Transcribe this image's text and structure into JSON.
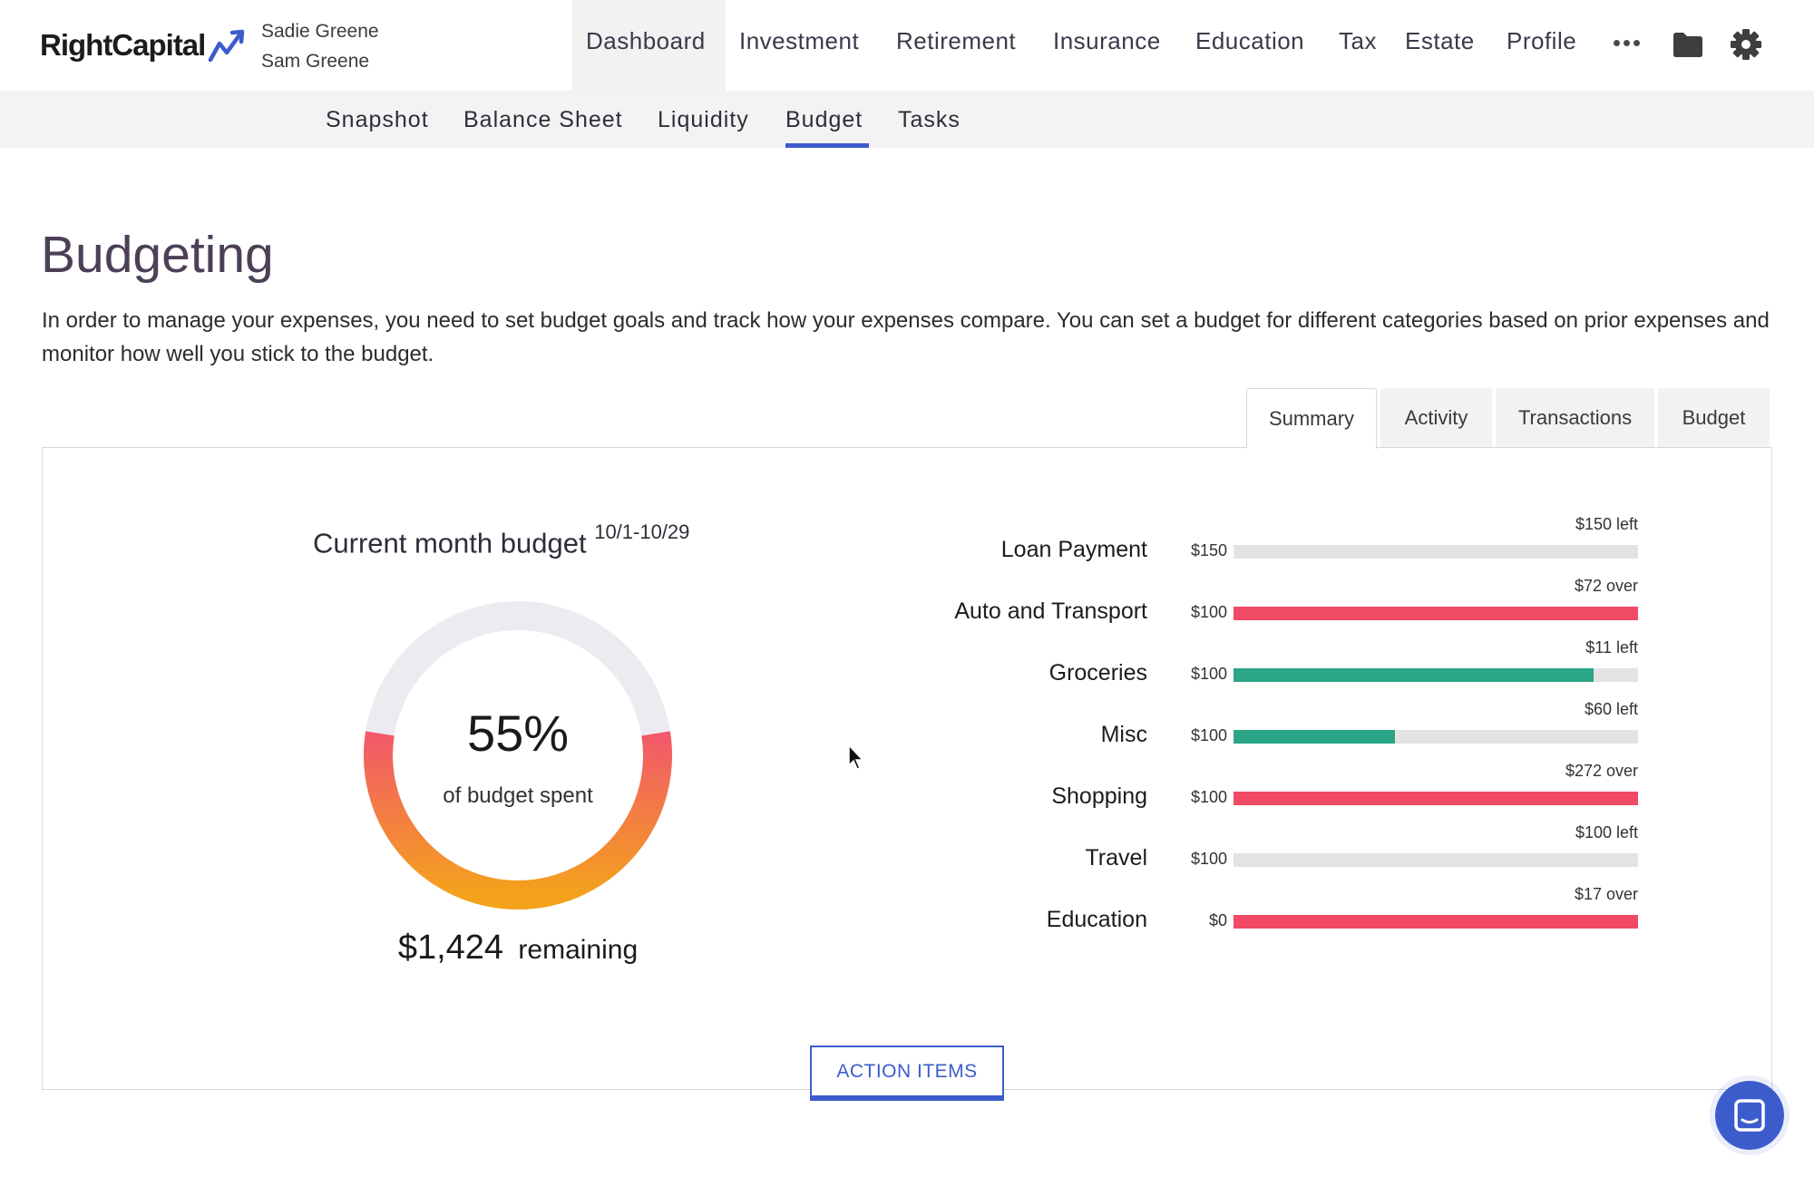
{
  "brand": {
    "logo_text": "RightCapital",
    "accent": "#3d5ccc"
  },
  "header": {
    "users": [
      "Sadie Greene",
      "Sam Greene"
    ],
    "nav": [
      {
        "label": "Dashboard",
        "active": true
      },
      {
        "label": "Investment"
      },
      {
        "label": "Retirement"
      },
      {
        "label": "Insurance"
      },
      {
        "label": "Education"
      },
      {
        "label": "Tax"
      },
      {
        "label": "Estate"
      },
      {
        "label": "Profile"
      }
    ],
    "icons": [
      "more-icon",
      "folder-icon",
      "gear-icon"
    ]
  },
  "subnav": {
    "items": [
      {
        "label": "Snapshot"
      },
      {
        "label": "Balance Sheet"
      },
      {
        "label": "Liquidity"
      },
      {
        "label": "Budget",
        "active": true
      },
      {
        "label": "Tasks"
      }
    ]
  },
  "page": {
    "title": "Budgeting",
    "description": "In order to manage your expenses, you need to set budget goals and track how your expenses compare. You can set a budget for different categories based on prior expenses and monitor how well you stick to the budget."
  },
  "tabs": [
    {
      "label": "Summary",
      "active": true
    },
    {
      "label": "Activity"
    },
    {
      "label": "Transactions"
    },
    {
      "label": "Budget"
    }
  ],
  "summary": {
    "heading": "Current month budget",
    "period": "10/1-10/29",
    "percent_spent": 55,
    "percent_text": "55%",
    "percent_label": "of budget spent",
    "remaining_amount": "$1,424",
    "remaining_label": "remaining",
    "colors": {
      "track": "#ebebf0",
      "gradient_start": "#f4a21c",
      "gradient_end": "#f2586a"
    }
  },
  "categories": [
    {
      "name": "Loan Payment",
      "budget": "$150",
      "status": "$150 left",
      "fill": 0,
      "color": "#2aa585"
    },
    {
      "name": "Auto and Transport",
      "budget": "$100",
      "status": "$72 over",
      "fill": 1,
      "color": "#f04a64"
    },
    {
      "name": "Groceries",
      "budget": "$100",
      "status": "$11 left",
      "fill": 0.89,
      "color": "#2aa585"
    },
    {
      "name": "Misc",
      "budget": "$100",
      "status": "$60 left",
      "fill": 0.4,
      "color": "#2aa585"
    },
    {
      "name": "Shopping",
      "budget": "$100",
      "status": "$272 over",
      "fill": 1,
      "color": "#f04a64"
    },
    {
      "name": "Travel",
      "budget": "$100",
      "status": "$100 left",
      "fill": 0,
      "color": "#2aa585"
    },
    {
      "name": "Education",
      "budget": "$0",
      "status": "$17 over",
      "fill": 1,
      "color": "#f04a64"
    }
  ],
  "actions": {
    "action_items_label": "ACTION ITEMS"
  }
}
